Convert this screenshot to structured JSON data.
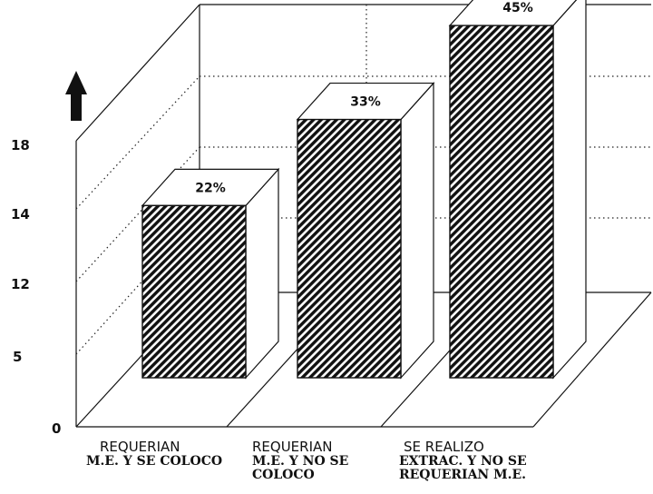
{
  "chart_data": {
    "type": "bar",
    "title": "",
    "xlabel": "",
    "ylabel": "",
    "y_ticks": [
      "0",
      "5",
      "12",
      "14",
      "18"
    ],
    "categories": [
      [
        "REQUERIAN",
        "M.E. Y SE COLOCO"
      ],
      [
        "REQUERIAN",
        "M.E. Y NO SE",
        "COLOCO"
      ],
      [
        "SE REALIZO",
        "EXTRAC. Y NO SE",
        "REQUERIAN M.E."
      ]
    ],
    "values": [
      22,
      33,
      45
    ],
    "value_labels": [
      "22%",
      "33%",
      "45%"
    ],
    "value_unit": "%",
    "three_d": true,
    "pattern": "diagonal-hatch",
    "grid": "dotted",
    "legend": "none",
    "axis_arrow_icon": "up-arrow-icon"
  }
}
